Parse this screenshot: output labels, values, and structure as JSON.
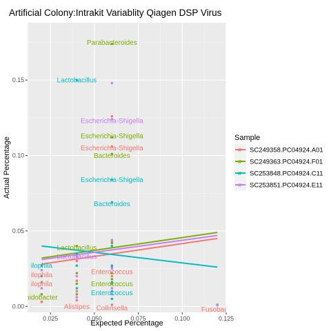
{
  "chart_data": {
    "type": "scatter",
    "title": "Artificial Colony:Intrakit Variablity Qiagen DSP Virus",
    "xlabel": "Expected Percentage",
    "ylabel": "Actual Percentage",
    "xlim": [
      0.012,
      0.125
    ],
    "ylim": [
      -0.004,
      0.188
    ],
    "xticks": [
      0.025,
      0.05,
      0.075,
      0.1,
      0.125
    ],
    "xtick_labels": [
      "0.025",
      "0.050",
      "0.075",
      "0.100",
      "0.125"
    ],
    "yticks": [
      0,
      0.05,
      0.1,
      0.15
    ],
    "ytick_labels": [
      "0.00",
      "0.05",
      "0.10",
      "0.15"
    ],
    "grid": true,
    "legend": {
      "title": "Sample",
      "position": "right",
      "entries": [
        "SC249358.PC04924.A01",
        "SC249363.PC04924.F01",
        "SC253848.PC04924.C11",
        "SC253851.PC04924.E11"
      ]
    },
    "colors": [
      "#F8766D",
      "#7CAE00",
      "#00BFC4",
      "#C77CFF"
    ],
    "series": [
      {
        "name": "SC249358.PC04924.A01",
        "points": [
          [
            0.02,
            0.008
          ],
          [
            0.02,
            0.016
          ],
          [
            0.02,
            0.003
          ],
          [
            0.04,
            0.03
          ],
          [
            0.04,
            0.017
          ],
          [
            0.04,
            0.01
          ],
          [
            0.04,
            0.004
          ],
          [
            0.06,
            0.126
          ],
          [
            0.06,
            0.106
          ],
          [
            0.06,
            0.043
          ],
          [
            0.06,
            0.026
          ],
          [
            0.06,
            0.02
          ],
          [
            0.06,
            0.001
          ],
          [
            0.12,
            0.001
          ]
        ],
        "fit": [
          [
            0.02,
            0.028
          ],
          [
            0.12,
            0.045
          ]
        ]
      },
      {
        "name": "SC249363.PC04924.F01",
        "points": [
          [
            0.02,
            0.02
          ],
          [
            0.02,
            0.008
          ],
          [
            0.04,
            0.04
          ],
          [
            0.04,
            0.022
          ],
          [
            0.04,
            0.015
          ],
          [
            0.04,
            0.008
          ],
          [
            0.06,
            0.174
          ],
          [
            0.06,
            0.112
          ],
          [
            0.06,
            0.101
          ],
          [
            0.06,
            0.042
          ],
          [
            0.06,
            0.022
          ],
          [
            0.06,
            0.018
          ],
          [
            0.06,
            0.015
          ],
          [
            0.12,
            0.001
          ]
        ],
        "fit": [
          [
            0.02,
            0.032
          ],
          [
            0.12,
            0.049
          ]
        ]
      },
      {
        "name": "SC253848.PC04924.C11",
        "points": [
          [
            0.02,
            0.027
          ],
          [
            0.02,
            0.02
          ],
          [
            0.04,
            0.15
          ],
          [
            0.04,
            0.035
          ],
          [
            0.04,
            0.027
          ],
          [
            0.04,
            0.012
          ],
          [
            0.06,
            0.084
          ],
          [
            0.06,
            0.069
          ],
          [
            0.06,
            0.04
          ],
          [
            0.06,
            0.027
          ],
          [
            0.06,
            0.016
          ],
          [
            0.06,
            0.01
          ],
          [
            0.06,
            0.005
          ],
          [
            0.12,
            0.001
          ]
        ],
        "fit": [
          [
            0.02,
            0.04
          ],
          [
            0.12,
            0.026
          ]
        ]
      },
      {
        "name": "SC253851.PC04924.E11",
        "points": [
          [
            0.02,
            0.024
          ],
          [
            0.02,
            0.012
          ],
          [
            0.04,
            0.033
          ],
          [
            0.04,
            0.02
          ],
          [
            0.04,
            0.006
          ],
          [
            0.06,
            0.148
          ],
          [
            0.06,
            0.124
          ],
          [
            0.06,
            0.044
          ],
          [
            0.06,
            0.025
          ],
          [
            0.06,
            0.012
          ],
          [
            0.06,
            0.008
          ],
          [
            0.12,
            0.001
          ]
        ],
        "fit": [
          [
            0.02,
            0.031
          ],
          [
            0.12,
            0.047
          ]
        ]
      }
    ],
    "annotations": [
      {
        "text": "Parabacteroides",
        "x": 0.06,
        "y": 0.175,
        "series": 1
      },
      {
        "text": "Lactobacillus",
        "x": 0.04,
        "y": 0.15,
        "series": 2
      },
      {
        "text": "Escherichia-Shigella",
        "x": 0.06,
        "y": 0.123,
        "series": 3
      },
      {
        "text": "Escherichia-Shigella",
        "x": 0.06,
        "y": 0.113,
        "series": 1
      },
      {
        "text": "Escherichia-Shigella",
        "x": 0.06,
        "y": 0.105,
        "series": 0
      },
      {
        "text": "Bacteroides",
        "x": 0.06,
        "y": 0.1,
        "series": 1
      },
      {
        "text": "Escherichia-Shigella",
        "x": 0.06,
        "y": 0.084,
        "series": 2
      },
      {
        "text": "Bacteroides",
        "x": 0.06,
        "y": 0.068,
        "series": 2
      },
      {
        "text": "Lactobacillus",
        "x": 0.04,
        "y": 0.039,
        "series": 1
      },
      {
        "text": "Lactobacillus",
        "x": 0.04,
        "y": 0.033,
        "series": 3
      },
      {
        "text": "ilophila",
        "x": 0.02,
        "y": 0.027,
        "series": 2
      },
      {
        "text": "Enterococcus",
        "x": 0.06,
        "y": 0.023,
        "series": 0
      },
      {
        "text": "ilophila",
        "x": 0.02,
        "y": 0.021,
        "series": 0
      },
      {
        "text": "ilophila",
        "x": 0.02,
        "y": 0.015,
        "series": 0
      },
      {
        "text": "Enterococcus",
        "x": 0.06,
        "y": 0.015,
        "series": 1
      },
      {
        "text": "Enterococcus",
        "x": 0.06,
        "y": 0.009,
        "series": 2
      },
      {
        "text": "nidobacter",
        "x": 0.02,
        "y": 0.006,
        "series": 1
      },
      {
        "text": "Alistipes",
        "x": 0.04,
        "y": 0.0,
        "series": 0
      },
      {
        "text": "Collinsella",
        "x": 0.06,
        "y": -0.001,
        "series": 0
      },
      {
        "text": "Fusobacte",
        "x": 0.12,
        "y": -0.002,
        "series": 0
      }
    ]
  }
}
